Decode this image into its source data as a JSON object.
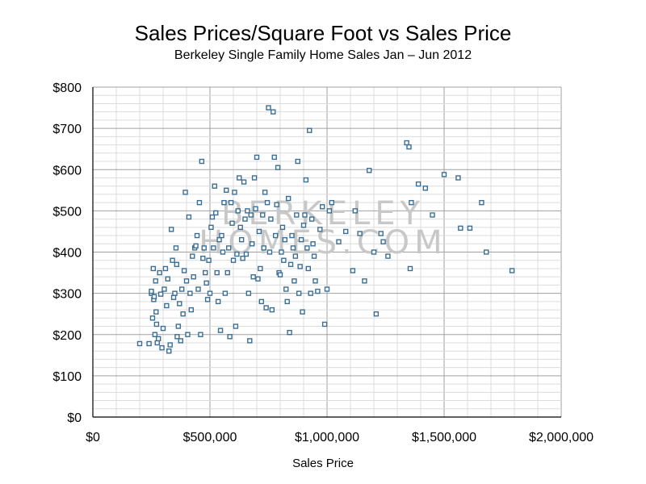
{
  "chart_data": {
    "type": "scatter",
    "title": "Sales Prices/Square Foot vs Sales Price",
    "subtitle": "Berkeley Single Family Home Sales Jan – Jun 2012",
    "xlabel": "Sales Price",
    "ylabel": "",
    "xlim": [
      0,
      2000000
    ],
    "ylim": [
      0,
      800
    ],
    "grid": true,
    "x_ticks": [
      "$0",
      "$500,000",
      "$1,000,000",
      "$1,500,000",
      "$2,000,000"
    ],
    "y_ticks": [
      "$0",
      "$100",
      "$200",
      "$300",
      "$400",
      "$500",
      "$600",
      "$700",
      "$800"
    ],
    "watermark": [
      "BERKELEY",
      "HOMES.COM"
    ],
    "colors": {
      "marker": "#3a6e96",
      "grid_minor": "#dcdcdc",
      "grid_major": "#a0a0a0"
    },
    "points": [
      [
        200000,
        178
      ],
      [
        240000,
        178
      ],
      [
        250000,
        300
      ],
      [
        250000,
        305
      ],
      [
        255000,
        240
      ],
      [
        258000,
        360
      ],
      [
        260000,
        285
      ],
      [
        262000,
        292
      ],
      [
        265000,
        200
      ],
      [
        268000,
        330
      ],
      [
        270000,
        255
      ],
      [
        272000,
        225
      ],
      [
        275000,
        180
      ],
      [
        280000,
        190
      ],
      [
        285000,
        350
      ],
      [
        290000,
        298
      ],
      [
        295000,
        168
      ],
      [
        300000,
        215
      ],
      [
        305000,
        310
      ],
      [
        310000,
        360
      ],
      [
        315000,
        270
      ],
      [
        320000,
        335
      ],
      [
        325000,
        160
      ],
      [
        330000,
        175
      ],
      [
        335000,
        455
      ],
      [
        340000,
        380
      ],
      [
        345000,
        290
      ],
      [
        350000,
        300
      ],
      [
        355000,
        410
      ],
      [
        358000,
        370
      ],
      [
        360000,
        195
      ],
      [
        365000,
        220
      ],
      [
        370000,
        275
      ],
      [
        375000,
        185
      ],
      [
        380000,
        310
      ],
      [
        385000,
        250
      ],
      [
        390000,
        355
      ],
      [
        395000,
        545
      ],
      [
        400000,
        330
      ],
      [
        405000,
        200
      ],
      [
        410000,
        485
      ],
      [
        415000,
        300
      ],
      [
        420000,
        260
      ],
      [
        425000,
        390
      ],
      [
        430000,
        340
      ],
      [
        435000,
        410
      ],
      [
        440000,
        415
      ],
      [
        445000,
        440
      ],
      [
        450000,
        310
      ],
      [
        455000,
        520
      ],
      [
        460000,
        200
      ],
      [
        465000,
        620
      ],
      [
        470000,
        385
      ],
      [
        475000,
        410
      ],
      [
        480000,
        350
      ],
      [
        485000,
        325
      ],
      [
        490000,
        285
      ],
      [
        495000,
        380
      ],
      [
        500000,
        300
      ],
      [
        505000,
        460
      ],
      [
        510000,
        485
      ],
      [
        515000,
        410
      ],
      [
        520000,
        560
      ],
      [
        525000,
        495
      ],
      [
        530000,
        350
      ],
      [
        535000,
        280
      ],
      [
        540000,
        430
      ],
      [
        545000,
        210
      ],
      [
        550000,
        440
      ],
      [
        555000,
        400
      ],
      [
        560000,
        520
      ],
      [
        565000,
        300
      ],
      [
        570000,
        550
      ],
      [
        575000,
        350
      ],
      [
        580000,
        410
      ],
      [
        585000,
        195
      ],
      [
        590000,
        520
      ],
      [
        595000,
        470
      ],
      [
        600000,
        380
      ],
      [
        605000,
        545
      ],
      [
        610000,
        220
      ],
      [
        615000,
        395
      ],
      [
        620000,
        500
      ],
      [
        625000,
        580
      ],
      [
        630000,
        460
      ],
      [
        635000,
        430
      ],
      [
        640000,
        385
      ],
      [
        645000,
        570
      ],
      [
        650000,
        480
      ],
      [
        655000,
        395
      ],
      [
        660000,
        500
      ],
      [
        665000,
        300
      ],
      [
        670000,
        185
      ],
      [
        675000,
        490
      ],
      [
        680000,
        420
      ],
      [
        685000,
        340
      ],
      [
        690000,
        580
      ],
      [
        695000,
        505
      ],
      [
        700000,
        630
      ],
      [
        705000,
        335
      ],
      [
        710000,
        450
      ],
      [
        715000,
        360
      ],
      [
        720000,
        280
      ],
      [
        725000,
        490
      ],
      [
        730000,
        410
      ],
      [
        735000,
        545
      ],
      [
        740000,
        265
      ],
      [
        745000,
        520
      ],
      [
        750000,
        750
      ],
      [
        755000,
        400
      ],
      [
        760000,
        480
      ],
      [
        765000,
        260
      ],
      [
        770000,
        740
      ],
      [
        775000,
        630
      ],
      [
        780000,
        440
      ],
      [
        785000,
        515
      ],
      [
        790000,
        605
      ],
      [
        795000,
        350
      ],
      [
        800000,
        345
      ],
      [
        805000,
        400
      ],
      [
        810000,
        460
      ],
      [
        815000,
        380
      ],
      [
        820000,
        430
      ],
      [
        825000,
        310
      ],
      [
        830000,
        280
      ],
      [
        835000,
        530
      ],
      [
        840000,
        205
      ],
      [
        845000,
        370
      ],
      [
        850000,
        440
      ],
      [
        855000,
        410
      ],
      [
        860000,
        330
      ],
      [
        865000,
        390
      ],
      [
        870000,
        490
      ],
      [
        875000,
        620
      ],
      [
        880000,
        300
      ],
      [
        885000,
        365
      ],
      [
        890000,
        430
      ],
      [
        895000,
        255
      ],
      [
        900000,
        465
      ],
      [
        905000,
        490
      ],
      [
        910000,
        575
      ],
      [
        915000,
        410
      ],
      [
        920000,
        360
      ],
      [
        925000,
        695
      ],
      [
        930000,
        300
      ],
      [
        935000,
        480
      ],
      [
        940000,
        420
      ],
      [
        945000,
        390
      ],
      [
        950000,
        330
      ],
      [
        960000,
        305
      ],
      [
        970000,
        455
      ],
      [
        980000,
        510
      ],
      [
        990000,
        225
      ],
      [
        1000000,
        310
      ],
      [
        1010000,
        500
      ],
      [
        1020000,
        520
      ],
      [
        1050000,
        425
      ],
      [
        1080000,
        450
      ],
      [
        1110000,
        355
      ],
      [
        1120000,
        500
      ],
      [
        1140000,
        445
      ],
      [
        1160000,
        330
      ],
      [
        1180000,
        598
      ],
      [
        1200000,
        400
      ],
      [
        1210000,
        250
      ],
      [
        1230000,
        445
      ],
      [
        1240000,
        425
      ],
      [
        1260000,
        390
      ],
      [
        1340000,
        665
      ],
      [
        1350000,
        655
      ],
      [
        1355000,
        360
      ],
      [
        1360000,
        520
      ],
      [
        1390000,
        565
      ],
      [
        1420000,
        555
      ],
      [
        1450000,
        490
      ],
      [
        1500000,
        588
      ],
      [
        1560000,
        580
      ],
      [
        1570000,
        458
      ],
      [
        1610000,
        458
      ],
      [
        1660000,
        520
      ],
      [
        1680000,
        400
      ],
      [
        1790000,
        355
      ]
    ]
  }
}
